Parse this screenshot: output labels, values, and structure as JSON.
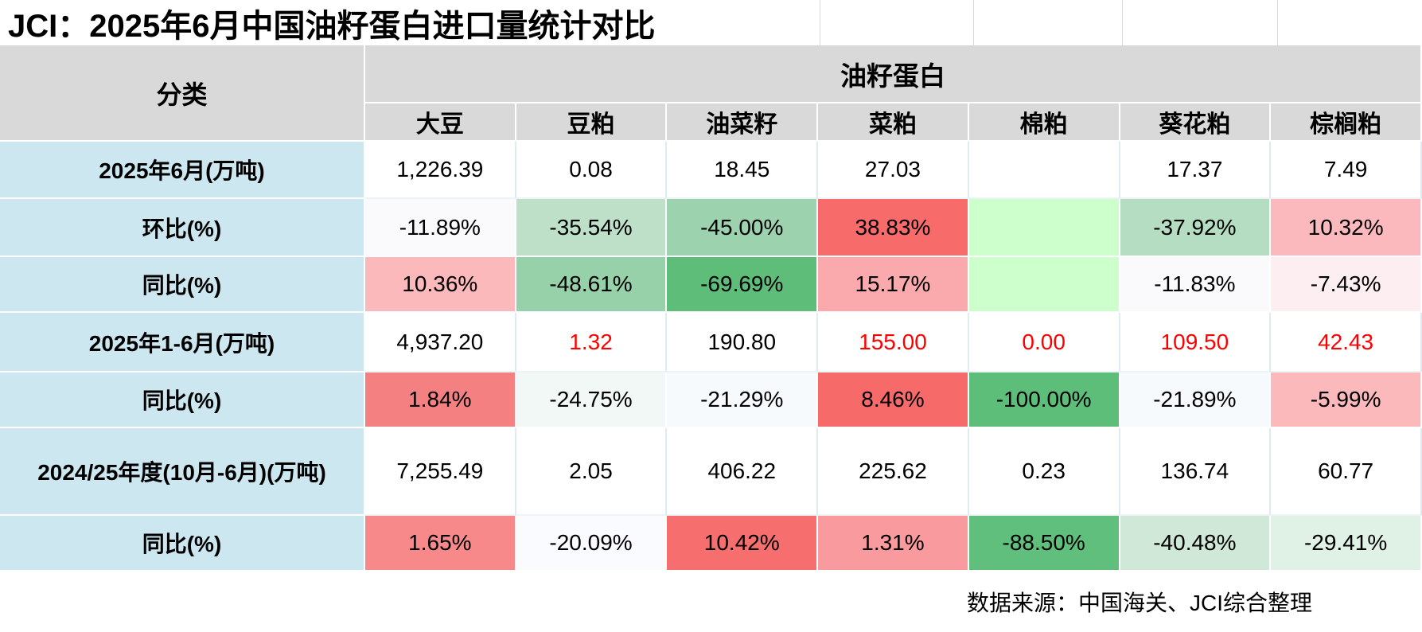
{
  "chart_data": {
    "type": "table",
    "title": "JCI：2025年6月中国油籽蛋白进口量统计对比",
    "category_header": "分类",
    "group_header": "油籽蛋白",
    "columns": [
      "大豆",
      "豆粕",
      "油菜籽",
      "菜粕",
      "棉粕",
      "葵花粕",
      "棕榈粕"
    ],
    "rows": [
      {
        "label": "2025年6月(万吨)",
        "values": [
          "1,226.39",
          "0.08",
          "18.45",
          "27.03",
          "",
          "17.37",
          "7.49"
        ],
        "bg": [
          "",
          "",
          "",
          "",
          "",
          "",
          ""
        ],
        "fg": [
          "",
          "",
          "",
          "",
          "",
          "",
          ""
        ]
      },
      {
        "label": "环比(%)",
        "values": [
          "-11.89%",
          "-35.54%",
          "-45.00%",
          "38.83%",
          "",
          "-37.92%",
          "10.32%"
        ],
        "bg": [
          "#FAFAFD",
          "#BEE0C9",
          "#9DD2AF",
          "#F76B6B",
          "#CCFFCC",
          "#B5DDC2",
          "#FBB9BD"
        ],
        "fg": [
          "",
          "",
          "",
          "",
          "",
          "",
          ""
        ]
      },
      {
        "label": "同比(%)",
        "values": [
          "10.36%",
          "-48.61%",
          "-69.69%",
          "15.17%",
          "",
          "-11.83%",
          "-7.43%"
        ],
        "bg": [
          "#FBB9BB",
          "#97D1A9",
          "#5DBD79",
          "#FAAAAD",
          "#CCFFCC",
          "#FAFAFD",
          "#FCEEF1"
        ],
        "fg": [
          "",
          "",
          "",
          "",
          "",
          "",
          ""
        ]
      },
      {
        "label": "2025年1-6月(万吨)",
        "values": [
          "4,937.20",
          "1.32",
          "190.80",
          "155.00",
          "0.00",
          "109.50",
          "42.43"
        ],
        "bg": [
          "",
          "",
          "",
          "",
          "",
          "",
          ""
        ],
        "fg": [
          "",
          "#FF0000",
          "",
          "#FF0000",
          "#FF0000",
          "#FF0000",
          "#FF0000"
        ]
      },
      {
        "label": "同比(%)",
        "values": [
          "1.84%",
          "-24.75%",
          "-21.29%",
          "8.46%",
          "-100.00%",
          "-21.89%",
          "-5.99%"
        ],
        "bg": [
          "#F58082",
          "#F2F8F6",
          "#F7FAFD",
          "#F66A6A",
          "#5CBE79",
          "#F7FAFD",
          "#FBB9BC"
        ],
        "fg": [
          "",
          "",
          "",
          "",
          "",
          "",
          ""
        ]
      },
      {
        "label": "2024/25年度(10月-6月)(万吨)",
        "values": [
          "7,255.49",
          "2.05",
          "406.22",
          "225.62",
          "0.23",
          "136.74",
          "60.77"
        ],
        "bg": [
          "",
          "",
          "",
          "",
          "",
          "",
          ""
        ],
        "fg": [
          "",
          "",
          "",
          "",
          "",
          "",
          ""
        ]
      },
      {
        "label": "同比(%)",
        "values": [
          "1.65%",
          "-20.09%",
          "10.42%",
          "1.31%",
          "-88.50%",
          "-40.48%",
          "-29.41%"
        ],
        "bg": [
          "#F8898B",
          "#FAFBFE",
          "#F66E6E",
          "#F99B9E",
          "#60BF7C",
          "#CFE8D7",
          "#E0F1E6"
        ],
        "fg": [
          "",
          "",
          "",
          "",
          "",
          "",
          ""
        ]
      }
    ],
    "layout_hints": {
      "heatmap": "red = positive change, green = negative change",
      "grid": "on"
    }
  },
  "footer": {
    "source_note": "数据来源：中国海关、JCI综合整理"
  },
  "palette": {
    "label_bg": "#CDE7F0",
    "header_bg": "#D9D9D9",
    "flag_text": "#FF0000",
    "positive_strong": "#F66A6A",
    "negative_strong": "#5CBE79",
    "blank_cell": "#CCFFCC"
  }
}
